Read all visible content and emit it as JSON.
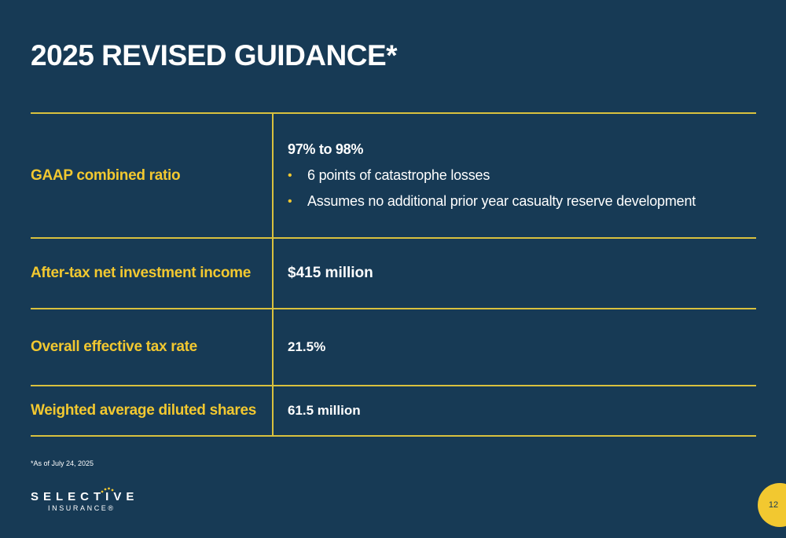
{
  "title": "2025 REVISED GUIDANCE*",
  "rows": [
    {
      "label": "GAAP combined ratio",
      "value": "97% to 98%",
      "bullets": [
        "6 points of catastrophe losses",
        "Assumes no additional prior year casualty reserve development"
      ]
    },
    {
      "label": "After-tax net investment income",
      "value": "$415 million"
    },
    {
      "label": "Overall effective tax rate",
      "value": "21.5%"
    },
    {
      "label": "Weighted average diluted shares",
      "value": "61.5 million"
    }
  ],
  "footnote": "*As of July 24, 2025",
  "logo": {
    "name": "SELECTIVE",
    "sub": "INSURANCE®"
  },
  "page_number": "12",
  "colors": {
    "background": "#173a55",
    "accent": "#f2c830",
    "rule": "#d9c13e",
    "text": "#ffffff"
  }
}
